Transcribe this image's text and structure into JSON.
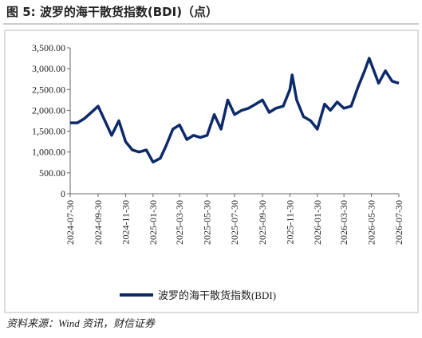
{
  "title": "图 5:  波罗的海干散货指数(BDI)（点）",
  "source": "资料来源：Wind 资讯，财信证券",
  "chart_data": {
    "type": "line",
    "x": [
      "2024-07-30",
      "2024-08-15",
      "2024-08-30",
      "2024-09-15",
      "2024-09-30",
      "2024-10-15",
      "2024-10-30",
      "2024-11-15",
      "2024-11-30",
      "2024-12-15",
      "2024-12-30",
      "2025-01-15",
      "2025-01-30",
      "2025-02-15",
      "2025-02-28",
      "2025-03-15",
      "2025-03-30",
      "2025-04-15",
      "2025-04-30",
      "2025-05-15",
      "2025-05-30",
      "2025-06-15",
      "2025-06-30",
      "2025-07-15",
      "2025-07-30",
      "2025-08-15",
      "2025-08-30",
      "2025-09-15",
      "2025-09-30",
      "2025-10-15",
      "2025-10-30",
      "2025-11-15",
      "2025-11-30",
      "2025-12-05",
      "2025-12-15",
      "2025-12-30",
      "2026-01-15",
      "2026-01-30",
      "2026-02-15",
      "2026-02-28",
      "2026-03-15",
      "2026-03-30",
      "2026-04-15",
      "2026-04-30",
      "2026-05-15",
      "2026-05-25",
      "2026-06-15",
      "2026-06-30",
      "2026-07-15",
      "2026-07-30"
    ],
    "series": [
      {
        "name": "波罗的海干散货指数(BDI)",
        "color": "#0d2a6b",
        "values": [
          1700,
          1700,
          1800,
          1950,
          2100,
          1750,
          1400,
          1750,
          1250,
          1050,
          1000,
          1050,
          760,
          850,
          1150,
          1550,
          1650,
          1300,
          1400,
          1350,
          1400,
          1900,
          1550,
          2250,
          1900,
          2000,
          2050,
          2150,
          2250,
          1950,
          2050,
          2100,
          2500,
          2850,
          2250,
          1850,
          1750,
          1550,
          2150,
          2000,
          2200,
          2050,
          2100,
          2550,
          2950,
          3250,
          2650,
          2950,
          2700,
          2650
        ]
      }
    ],
    "xlim": [
      "2024-07-30",
      "2026-07-30"
    ],
    "xticks": [
      "2024-07-30",
      "2024-09-30",
      "2024-11-30",
      "2025-01-30",
      "2025-03-30",
      "2025-05-30",
      "2025-07-30",
      "2025-09-30",
      "2025-11-30",
      "2026-01-30",
      "2026-03-30",
      "2026-05-30",
      "2026-07-30"
    ],
    "ylim": [
      0,
      3500
    ],
    "yticks": [
      0,
      {
        "value": 500,
        "label": "500.00"
      },
      {
        "value": 1000,
        "label": "1,000.00"
      },
      {
        "value": 1500,
        "label": "1,500.00"
      },
      {
        "value": 2000,
        "label": "2,000.00"
      },
      {
        "value": 2500,
        "label": "2,500.00"
      },
      {
        "value": 3000,
        "label": "3,000.00"
      },
      {
        "value": 3500,
        "label": "3,500.00"
      }
    ]
  }
}
